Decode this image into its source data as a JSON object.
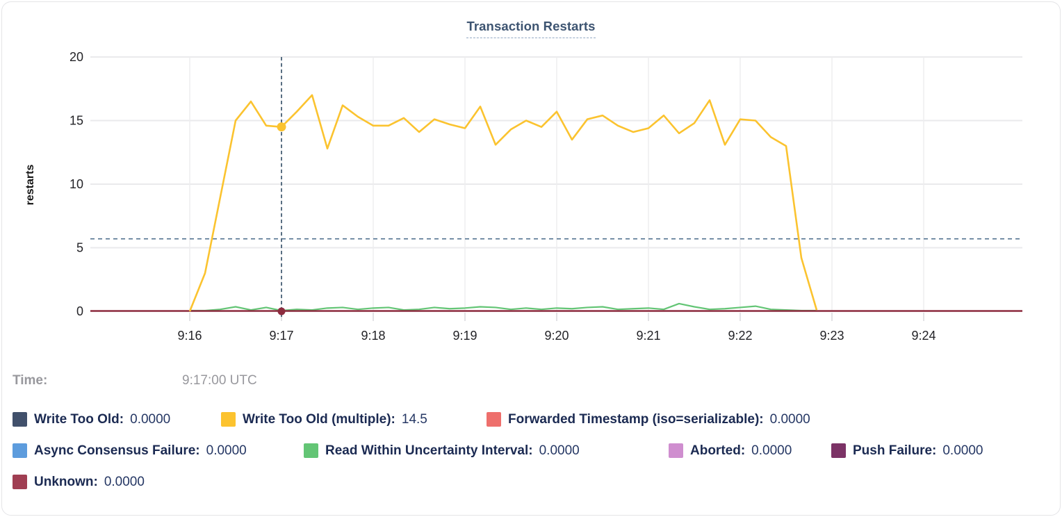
{
  "card": {
    "title": "Transaction Restarts"
  },
  "tooltip": {
    "time_label": "Time:",
    "time_value": "9:17:00 UTC"
  },
  "legend": {
    "items": [
      {
        "label": "Write Too Old",
        "value": "0.0000",
        "color": "#41506b"
      },
      {
        "label": "Write Too Old (multiple)",
        "value": "14.5",
        "color": "#fcc32f"
      },
      {
        "label": "Forwarded Timestamp (iso=serializable)",
        "value": "0.0000",
        "color": "#ee6f6c"
      },
      {
        "label": "Async Consensus Failure",
        "value": "0.0000",
        "color": "#5d9cdd"
      },
      {
        "label": "Read Within Uncertainty Interval",
        "value": "0.0000",
        "color": "#63c575"
      },
      {
        "label": "Aborted",
        "value": "0.0000",
        "color": "#cf8ecf"
      },
      {
        "label": "Push Failure",
        "value": "0.0000",
        "color": "#7c3366"
      },
      {
        "label": "Unknown",
        "value": "0.0000",
        "color": "#a03e52"
      }
    ]
  },
  "chart_data": {
    "type": "line",
    "title": "Transaction Restarts",
    "xlabel": "",
    "ylabel": "restarts",
    "ylim": [
      0,
      20
    ],
    "yticks": [
      0,
      5,
      10,
      15,
      20
    ],
    "xtick_labels": [
      "9:16",
      "9:17",
      "9:18",
      "9:19",
      "9:20",
      "9:21",
      "9:22",
      "9:23",
      "9:24"
    ],
    "grid": true,
    "legend_position": "bottom",
    "colors": {
      "grid": "#eaeaec",
      "tick_text": "#232327",
      "crosshair": "#3d566e",
      "threshold_line": "#51718f"
    },
    "crosshair": {
      "time": "9:17:00",
      "hline_value": 5.7
    },
    "hover_points": [
      {
        "series": "Write Too Old (multiple)",
        "time": "9:17:00",
        "value": 14.5,
        "color": "#fbc32f"
      },
      {
        "series": "Unknown",
        "time": "9:17:00",
        "value": 0,
        "color": "#8d2c3f"
      }
    ],
    "times": [
      "9:16:00",
      "9:16:10",
      "9:16:20",
      "9:16:30",
      "9:16:40",
      "9:16:50",
      "9:17:00",
      "9:17:10",
      "9:17:20",
      "9:17:30",
      "9:17:40",
      "9:17:50",
      "9:18:00",
      "9:18:10",
      "9:18:20",
      "9:18:30",
      "9:18:40",
      "9:18:50",
      "9:19:00",
      "9:19:10",
      "9:19:20",
      "9:19:30",
      "9:19:40",
      "9:19:50",
      "9:20:00",
      "9:20:10",
      "9:20:20",
      "9:20:30",
      "9:20:40",
      "9:20:50",
      "9:21:00",
      "9:21:10",
      "9:21:20",
      "9:21:30",
      "9:21:40",
      "9:21:50",
      "9:22:00",
      "9:22:10",
      "9:22:20",
      "9:22:30",
      "9:22:40",
      "9:22:50"
    ],
    "series": [
      {
        "name": "Write Too Old (multiple)",
        "color": "#fbc32f",
        "values": [
          0,
          3,
          9,
          15,
          16.5,
          14.6,
          14.5,
          15.7,
          17,
          12.8,
          16.2,
          15.3,
          14.6,
          14.6,
          15.2,
          14.1,
          15.1,
          14.7,
          14.4,
          16.1,
          13.1,
          14.3,
          15,
          14.5,
          15.7,
          13.5,
          15.1,
          15.4,
          14.6,
          14.1,
          14.4,
          15.4,
          14,
          14.8,
          16.6,
          13.1,
          15.1,
          15,
          13.7,
          13,
          4.2,
          0.1
        ]
      },
      {
        "name": "Read Within Uncertainty Interval",
        "color": "#63c575",
        "values": [
          0,
          0,
          0.1,
          0.3,
          0.05,
          0.25,
          0,
          0.1,
          0.05,
          0.2,
          0.25,
          0.1,
          0.2,
          0.25,
          0.05,
          0.1,
          0.25,
          0.15,
          0.2,
          0.3,
          0.25,
          0.1,
          0.2,
          0.1,
          0.2,
          0.15,
          0.25,
          0.3,
          0.1,
          0.15,
          0.2,
          0.1,
          0.55,
          0.3,
          0.1,
          0.15,
          0.25,
          0.35,
          0.1,
          0.05,
          0,
          0
        ]
      },
      {
        "name": "Unknown",
        "color": "#8d2c3f",
        "constant": 0,
        "full_width": true
      }
    ]
  }
}
